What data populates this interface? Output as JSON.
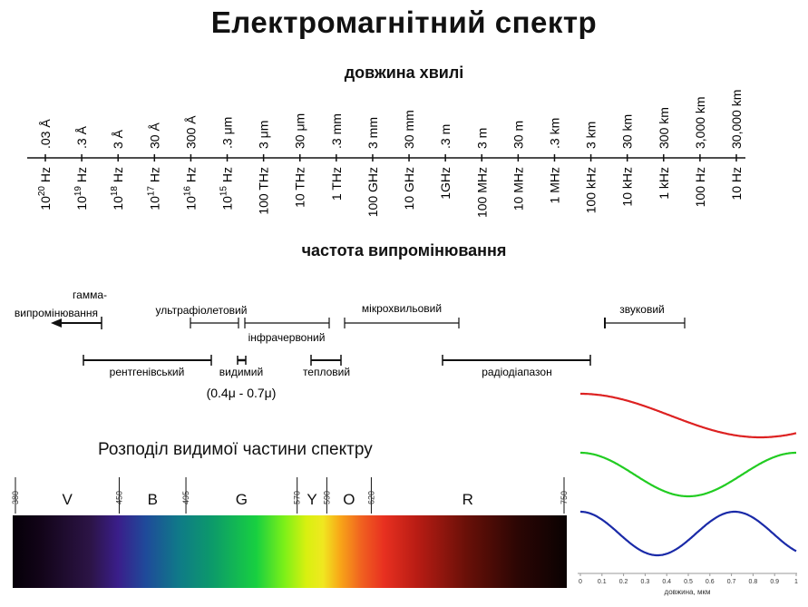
{
  "title": "Електромагнітний спектр",
  "wavelength_heading": "довжина хвилі",
  "frequency_heading": "частота випромінювання",
  "scale_ticks": [
    {
      "wavelength": ".03 Å",
      "frequency_base": "10",
      "frequency_exp": "20",
      "frequency_unit": " Hz"
    },
    {
      "wavelength": ".3 Å",
      "frequency_base": "10",
      "frequency_exp": "19",
      "frequency_unit": " Hz"
    },
    {
      "wavelength": "3 Å",
      "frequency_base": "10",
      "frequency_exp": "18",
      "frequency_unit": " Hz"
    },
    {
      "wavelength": "30 Å",
      "frequency_base": "10",
      "frequency_exp": "17",
      "frequency_unit": " Hz"
    },
    {
      "wavelength": "300 Å",
      "frequency_base": "10",
      "frequency_exp": "16",
      "frequency_unit": " Hz"
    },
    {
      "wavelength": ".3 μm",
      "frequency_base": "10",
      "frequency_exp": "15",
      "frequency_unit": " Hz"
    },
    {
      "wavelength": "3 μm",
      "frequency_base": "100 THz",
      "frequency_exp": "",
      "frequency_unit": ""
    },
    {
      "wavelength": "30 μm",
      "frequency_base": "10 THz",
      "frequency_exp": "",
      "frequency_unit": ""
    },
    {
      "wavelength": ".3 mm",
      "frequency_base": "1 THz",
      "frequency_exp": "",
      "frequency_unit": ""
    },
    {
      "wavelength": "3 mm",
      "frequency_base": "100 GHz",
      "frequency_exp": "",
      "frequency_unit": ""
    },
    {
      "wavelength": "30 mm",
      "frequency_base": "10 GHz",
      "frequency_exp": "",
      "frequency_unit": ""
    },
    {
      "wavelength": ".3 m",
      "frequency_base": "1GHz",
      "frequency_exp": "",
      "frequency_unit": ""
    },
    {
      "wavelength": "3 m",
      "frequency_base": "100 MHz",
      "frequency_exp": "",
      "frequency_unit": ""
    },
    {
      "wavelength": "30 m",
      "frequency_base": "10 MHz",
      "frequency_exp": "",
      "frequency_unit": ""
    },
    {
      "wavelength": ".3 km",
      "frequency_base": "1 MHz",
      "frequency_exp": "",
      "frequency_unit": ""
    },
    {
      "wavelength": "3 km",
      "frequency_base": "100 kHz",
      "frequency_exp": "",
      "frequency_unit": ""
    },
    {
      "wavelength": "30 km",
      "frequency_base": "10 kHz",
      "frequency_exp": "",
      "frequency_unit": ""
    },
    {
      "wavelength": "300 km",
      "frequency_base": "1 kHz",
      "frequency_exp": "",
      "frequency_unit": ""
    },
    {
      "wavelength": "3,000 km",
      "frequency_base": "100 Hz",
      "frequency_exp": "",
      "frequency_unit": ""
    },
    {
      "wavelength": "30,000 km",
      "frequency_base": "10 Hz",
      "frequency_exp": "",
      "frequency_unit": ""
    }
  ],
  "bands": [
    {
      "label": "гамма-",
      "label2": "випромінювання",
      "kind": "gamma"
    },
    {
      "label": "ультрафіолетовий",
      "kind": "uv"
    },
    {
      "label": "інфрачервоний",
      "kind": "ir"
    },
    {
      "label": "мікрохвильовий",
      "kind": "microwave"
    },
    {
      "label": "звуковий",
      "kind": "sound"
    },
    {
      "label": "рентгенівський",
      "kind": "xray"
    },
    {
      "label": "видимий",
      "kind": "visible"
    },
    {
      "label": "тепловий",
      "kind": "thermal"
    },
    {
      "label": "радіодіапазон",
      "kind": "radio"
    }
  ],
  "visible_range": "(0.4μ - 0.7μ)",
  "visible_spectrum": {
    "title": "Розподіл видимої частини спектру",
    "boundaries": [
      "380",
      "450",
      "495",
      "570",
      "590",
      "620",
      "750"
    ],
    "colors": [
      "V",
      "B",
      "G",
      "Y",
      "O",
      "R"
    ]
  },
  "waves": {
    "series": [
      {
        "color": "#dd2222",
        "periods": 0.6
      },
      {
        "color": "#22cc22",
        "periods": 1.0
      },
      {
        "color": "#1a2aa8",
        "periods": 1.4
      }
    ],
    "x_ticks": [
      "0",
      "0.1",
      "0.2",
      "0.3",
      "0.4",
      "0.5",
      "0.6",
      "0.7",
      "0.8",
      "0.9",
      "1"
    ],
    "xlabel": "довжина, мкм"
  }
}
